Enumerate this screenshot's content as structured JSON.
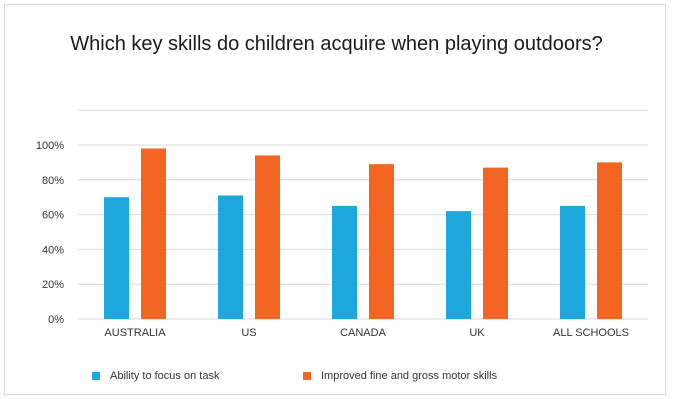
{
  "chart_data": {
    "type": "bar",
    "title": "Which key skills do children acquire when playing outdoors?",
    "xlabel": "",
    "ylabel": "",
    "categories": [
      "AUSTRALIA",
      "US",
      "CANADA",
      "UK",
      "ALL SCHOOLS"
    ],
    "y_ticks": [
      "0%",
      "20%",
      "40%",
      "60%",
      "80%",
      "100%"
    ],
    "ylim": [
      0,
      100
    ],
    "grid": true,
    "legend_position": "bottom",
    "series": [
      {
        "name": "Ability to focus on task",
        "color": "#1ea7dd",
        "values": [
          70,
          71,
          65,
          62,
          65
        ]
      },
      {
        "name": "Improved fine and gross motor skills",
        "color": "#f26522",
        "values": [
          98,
          94,
          89,
          87,
          90
        ]
      }
    ]
  }
}
